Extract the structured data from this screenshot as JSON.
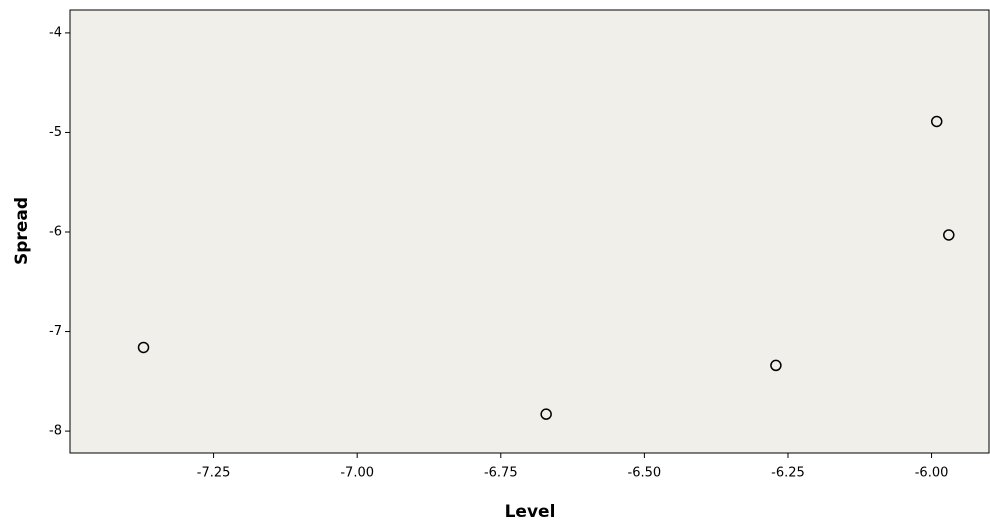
{
  "chart_data": {
    "type": "scatter",
    "x_label": "Level",
    "y_label": "Spread",
    "series": [
      {
        "color": "#000000",
        "x": [
          -7.372,
          -6.671,
          -6.271,
          -5.991,
          -5.97
        ],
        "values": [
          -7.16,
          -7.83,
          -7.34,
          -4.89,
          -6.03
        ]
      }
    ],
    "xlim": [
      -7.5,
      -5.9
    ],
    "ylim": [
      -8.22,
      -3.77
    ],
    "xticks": [
      -7.25,
      {
        "value": -7.0,
        "label": "-7.00"
      },
      -6.75,
      {
        "value": -6.5,
        "label": "-6.50"
      },
      -6.25,
      {
        "value": -6.0,
        "label": "-6.00"
      }
    ],
    "yticks": [
      -4,
      -5,
      -6,
      -7,
      -8
    ],
    "plot_background": "#f0efe9"
  }
}
